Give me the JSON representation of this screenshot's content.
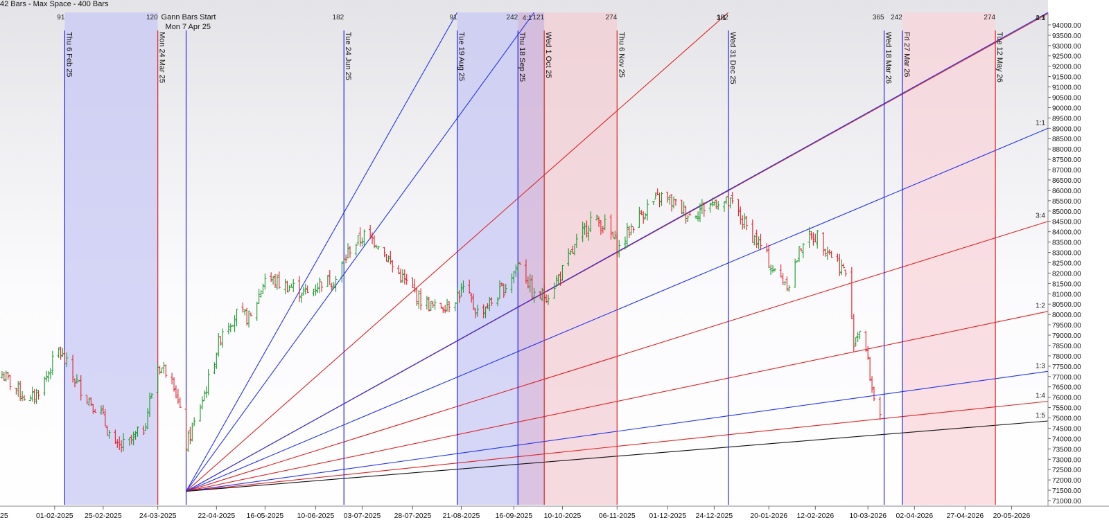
{
  "header": {
    "text": "42 Bars -  Max Space - 400 Bars"
  },
  "chart_data": {
    "type": "bar",
    "subtype": "ohlc",
    "ylim": [
      70800,
      94600
    ],
    "y_ticks": [
      71000,
      71500,
      72000,
      72500,
      73000,
      73500,
      74000,
      74500,
      75000,
      75500,
      76000,
      76500,
      77000,
      77500,
      78000,
      78500,
      79000,
      79500,
      80000,
      80500,
      81000,
      81500,
      82000,
      82500,
      83000,
      83500,
      84000,
      84500,
      85000,
      85500,
      86000,
      86500,
      87000,
      87500,
      88000,
      88500,
      89000,
      89500,
      90000,
      90500,
      91000,
      91500,
      92000,
      92500,
      93000,
      93500,
      94000
    ],
    "y_tick_suffix": ".00",
    "x_date_range": [
      "2025-01-05",
      "2026-06-07"
    ],
    "x_ticks": [
      {
        "date": "2025-01-04",
        "label": "25"
      },
      {
        "date": "2025-02-01",
        "label": "01-02-2025"
      },
      {
        "date": "2025-02-25",
        "label": "25-02-2025"
      },
      {
        "date": "2025-03-24",
        "label": "24-03-2025"
      },
      {
        "date": "2025-04-22",
        "label": "22-04-2025"
      },
      {
        "date": "2025-05-16",
        "label": "16-05-2025"
      },
      {
        "date": "2025-06-10",
        "label": "10-06-2025"
      },
      {
        "date": "2025-07-03",
        "label": "03-07-2025"
      },
      {
        "date": "2025-07-28",
        "label": "28-07-2025"
      },
      {
        "date": "2025-08-21",
        "label": "21-08-2025"
      },
      {
        "date": "2025-09-16",
        "label": "16-09-2025"
      },
      {
        "date": "2025-10-10",
        "label": "10-10-2025"
      },
      {
        "date": "2025-11-06",
        "label": "06-11-2025"
      },
      {
        "date": "2025-12-01",
        "label": "01-12-2025"
      },
      {
        "date": "2025-12-24",
        "label": "24-12-2025"
      },
      {
        "date": "2026-01-20",
        "label": "20-01-2026"
      },
      {
        "date": "2026-02-12",
        "label": "12-02-2026"
      },
      {
        "date": "2026-03-10",
        "label": "10-03-2026"
      },
      {
        "date": "2026-04-02",
        "label": "02-04-2026"
      },
      {
        "date": "2026-04-27",
        "label": "27-04-2026"
      },
      {
        "date": "2026-05-20",
        "label": "20-05-2026"
      }
    ],
    "grid": false,
    "gann_start": {
      "date": "2025-04-07",
      "price": 71450,
      "label": "Gann Bars Start",
      "date_label": "Mon 7 Apr 25"
    },
    "cycle_lines": [
      {
        "date": "2025-02-06",
        "label": "Thu 6 Feb 25",
        "top": "91",
        "color": "#2222ee"
      },
      {
        "date": "2025-03-24",
        "label": "Mon 24 Mar 25",
        "top": "120",
        "color": "#dd2222"
      },
      {
        "date": "2025-04-07",
        "label": "",
        "top": "",
        "color": "#2222ee"
      },
      {
        "date": "2025-06-24",
        "label": "Tue 24 Jun 25",
        "top": "182",
        "color": "#2222ee"
      },
      {
        "date": "2025-08-19",
        "label": "Tue 19 Aug 25",
        "top": "91",
        "color": "#2222ee"
      },
      {
        "date": "2025-09-18",
        "label": "Thu 18 Sep 25",
        "top": "242",
        "color": "#2222ee"
      },
      {
        "date": "2025-10-01",
        "label": "Wed 1 Oct 25",
        "top": "121",
        "color": "#dd2222"
      },
      {
        "date": "2025-11-06",
        "label": "Thu 6 Nov 25",
        "top": "274",
        "color": "#dd2222"
      },
      {
        "date": "2025-12-31",
        "label": "Wed 31 Dec 25",
        "top": "182",
        "color": "#2222ee"
      },
      {
        "date": "2026-03-18",
        "label": "Wed 18 Mar 26",
        "top": "365",
        "color": "#2222ee"
      },
      {
        "date": "2026-03-27",
        "label": "Fri 27 Mar 26",
        "top": "242",
        "color": "#2222ee"
      },
      {
        "date": "2026-05-12",
        "label": "Tue 12 May 26",
        "top": "274",
        "color": "#dd2222"
      }
    ],
    "shaded_zones": [
      {
        "start": "2025-02-06",
        "end": "2025-03-24",
        "color": "#c8c8f4"
      },
      {
        "start": "2025-08-19",
        "end": "2025-09-18",
        "color": "#c8c8f4"
      },
      {
        "start": "2025-09-18",
        "end": "2025-10-01",
        "color": "#cdb0d8"
      },
      {
        "start": "2025-10-01",
        "end": "2025-11-06",
        "color": "#f2cdd4"
      },
      {
        "start": "2026-03-27",
        "end": "2026-05-12",
        "color": "#f8d4da"
      }
    ],
    "gann_fan": [
      {
        "end_date": "2025-08-19",
        "end_price": 94600,
        "label": "",
        "color": "#2233ee"
      },
      {
        "end_date": "2025-09-26",
        "end_price": 94600,
        "label": "4:1",
        "color": "#2233ee"
      },
      {
        "end_date": "2025-12-31",
        "end_price": 94600,
        "label": "3:1",
        "color": "#dd2222"
      },
      {
        "end_date": "2026-06-07",
        "end_price": 94550,
        "label": "2:1",
        "color": "#dd2222"
      },
      {
        "end_date": "2026-06-07",
        "end_price": 94600,
        "label": "4:3",
        "color": "#2233ee"
      },
      {
        "end_date": "2026-06-07",
        "end_price": 89000,
        "label": "1:1",
        "color": "#2233ee"
      },
      {
        "end_date": "2026-06-07",
        "end_price": 84500,
        "label": "3:4",
        "color": "#dd2222"
      },
      {
        "end_date": "2026-06-07",
        "end_price": 80150,
        "label": "1:2",
        "color": "#dd2222"
      },
      {
        "end_date": "2026-06-07",
        "end_price": 77250,
        "label": "1:3",
        "color": "#2233ee"
      },
      {
        "end_date": "2026-06-07",
        "end_price": 75800,
        "label": "1:4",
        "color": "#dd2222"
      },
      {
        "end_date": "2026-06-07",
        "end_price": 74850,
        "label": "1:5",
        "color": "#111111"
      }
    ],
    "price_path": [
      [
        "2025-01-05",
        77200
      ],
      [
        "2025-01-12",
        76500
      ],
      [
        "2025-01-20",
        75800
      ],
      [
        "2025-01-27",
        76800
      ],
      [
        "2025-02-03",
        78300
      ],
      [
        "2025-02-10",
        77000
      ],
      [
        "2025-02-17",
        76000
      ],
      [
        "2025-02-24",
        75200
      ],
      [
        "2025-03-03",
        73500
      ],
      [
        "2025-03-10",
        73800
      ],
      [
        "2025-03-17",
        74500
      ],
      [
        "2025-03-24",
        77500
      ],
      [
        "2025-03-31",
        77200
      ],
      [
        "2025-04-07",
        73700
      ],
      [
        "2025-04-11",
        74700
      ],
      [
        "2025-04-18",
        76800
      ],
      [
        "2025-04-25",
        79300
      ],
      [
        "2025-05-02",
        80000
      ],
      [
        "2025-05-09",
        79800
      ],
      [
        "2025-05-16",
        81800
      ],
      [
        "2025-05-23",
        81500
      ],
      [
        "2025-05-30",
        81300
      ],
      [
        "2025-06-06",
        81000
      ],
      [
        "2025-06-13",
        81600
      ],
      [
        "2025-06-20",
        81700
      ],
      [
        "2025-06-27",
        83200
      ],
      [
        "2025-07-04",
        83800
      ],
      [
        "2025-07-11",
        83500
      ],
      [
        "2025-07-18",
        82300
      ],
      [
        "2025-07-25",
        81500
      ],
      [
        "2025-08-01",
        80700
      ],
      [
        "2025-08-08",
        80300
      ],
      [
        "2025-08-15",
        80600
      ],
      [
        "2025-08-22",
        81200
      ],
      [
        "2025-08-29",
        80100
      ],
      [
        "2025-09-05",
        80600
      ],
      [
        "2025-09-12",
        81400
      ],
      [
        "2025-09-19",
        82600
      ],
      [
        "2025-09-26",
        80800
      ],
      [
        "2025-10-03",
        81000
      ],
      [
        "2025-10-10",
        82100
      ],
      [
        "2025-10-17",
        83400
      ],
      [
        "2025-10-24",
        84600
      ],
      [
        "2025-10-31",
        84300
      ],
      [
        "2025-11-07",
        83200
      ],
      [
        "2025-11-14",
        84400
      ],
      [
        "2025-11-21",
        85200
      ],
      [
        "2025-11-28",
        85700
      ],
      [
        "2025-12-05",
        85300
      ],
      [
        "2025-12-12",
        84800
      ],
      [
        "2025-12-19",
        85200
      ],
      [
        "2025-12-26",
        85500
      ],
      [
        "2026-01-02",
        85300
      ],
      [
        "2026-01-09",
        84200
      ],
      [
        "2026-01-16",
        83300
      ],
      [
        "2026-01-23",
        82000
      ],
      [
        "2026-01-30",
        81500
      ],
      [
        "2026-02-06",
        83600
      ],
      [
        "2026-02-13",
        83800
      ],
      [
        "2026-02-20",
        82900
      ],
      [
        "2026-02-27",
        82000
      ],
      [
        "2026-03-03",
        78800
      ],
      [
        "2026-03-07",
        79500
      ],
      [
        "2026-03-12",
        76400
      ],
      [
        "2026-03-16",
        75200
      ]
    ]
  }
}
